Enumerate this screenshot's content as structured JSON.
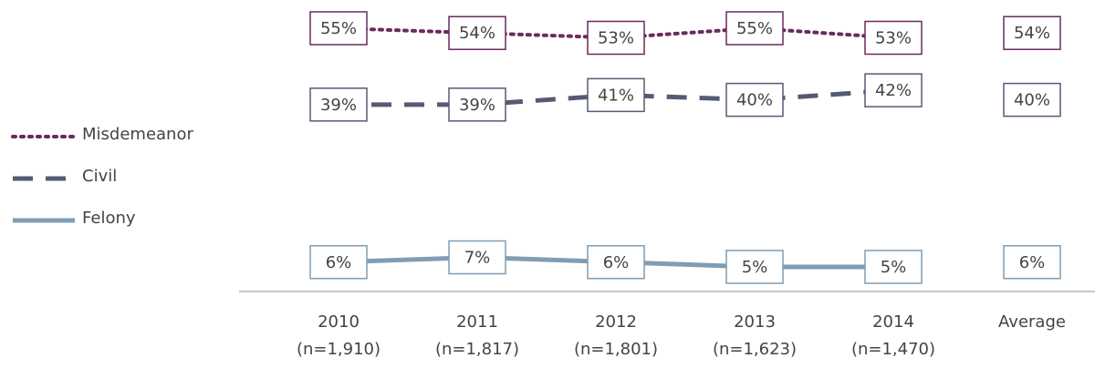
{
  "chart_data": {
    "type": "line",
    "categories": [
      "2010",
      "2011",
      "2012",
      "2013",
      "2014"
    ],
    "category_notes": [
      "(n=1,910)",
      "(n=1,817)",
      "(n=1,801)",
      "(n=1,623)",
      "(n=1,470)"
    ],
    "average_category": "Average",
    "series": [
      {
        "name": "Misdemeanor",
        "color": "#6b2a5e",
        "style": "dotted",
        "values": [
          55,
          54,
          53,
          55,
          53
        ],
        "value_labels": [
          "55%",
          "54%",
          "53%",
          "55%",
          "53%"
        ],
        "average": 54,
        "average_label": "54%"
      },
      {
        "name": "Civil",
        "color": "#565b73",
        "style": "dashed",
        "values": [
          39,
          39,
          41,
          40,
          42
        ],
        "value_labels": [
          "39%",
          "39%",
          "41%",
          "40%",
          "42%"
        ],
        "average": 40,
        "average_label": "40%"
      },
      {
        "name": "Felony",
        "color": "#7f9db4",
        "style": "solid",
        "values": [
          6,
          7,
          6,
          5,
          5
        ],
        "value_labels": [
          "6%",
          "7%",
          "6%",
          "5%",
          "5%"
        ],
        "average": 6,
        "average_label": "6%"
      }
    ]
  }
}
